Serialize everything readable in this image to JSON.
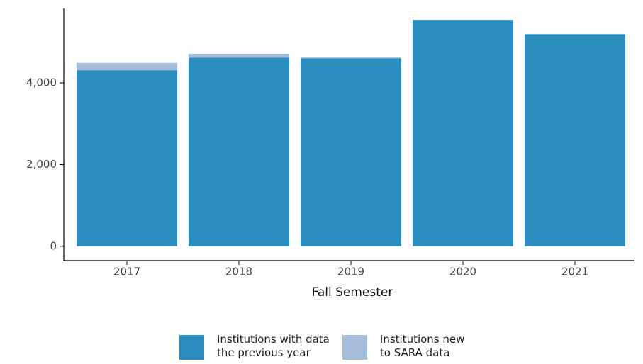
{
  "chart_data": {
    "type": "stacked-bar",
    "x_label": "Fall Semester",
    "categories": [
      "2017",
      "2018",
      "2019",
      "2020",
      "2021"
    ],
    "series": [
      {
        "name": "Institutions with data\nthe previous year",
        "color": "#2b8cbe",
        "values": [
          4310,
          4620,
          4600,
          5540,
          5190
        ]
      },
      {
        "name": "Institutions new\nto SARA data",
        "color": "#a6bddb",
        "values": [
          180,
          90,
          30,
          0,
          0
        ]
      }
    ],
    "ylim": [
      -350,
      5820
    ],
    "yticks": [
      0,
      {
        "value": 2000,
        "label": "2,000"
      },
      {
        "value": 4000,
        "label": "4,000"
      }
    ]
  }
}
